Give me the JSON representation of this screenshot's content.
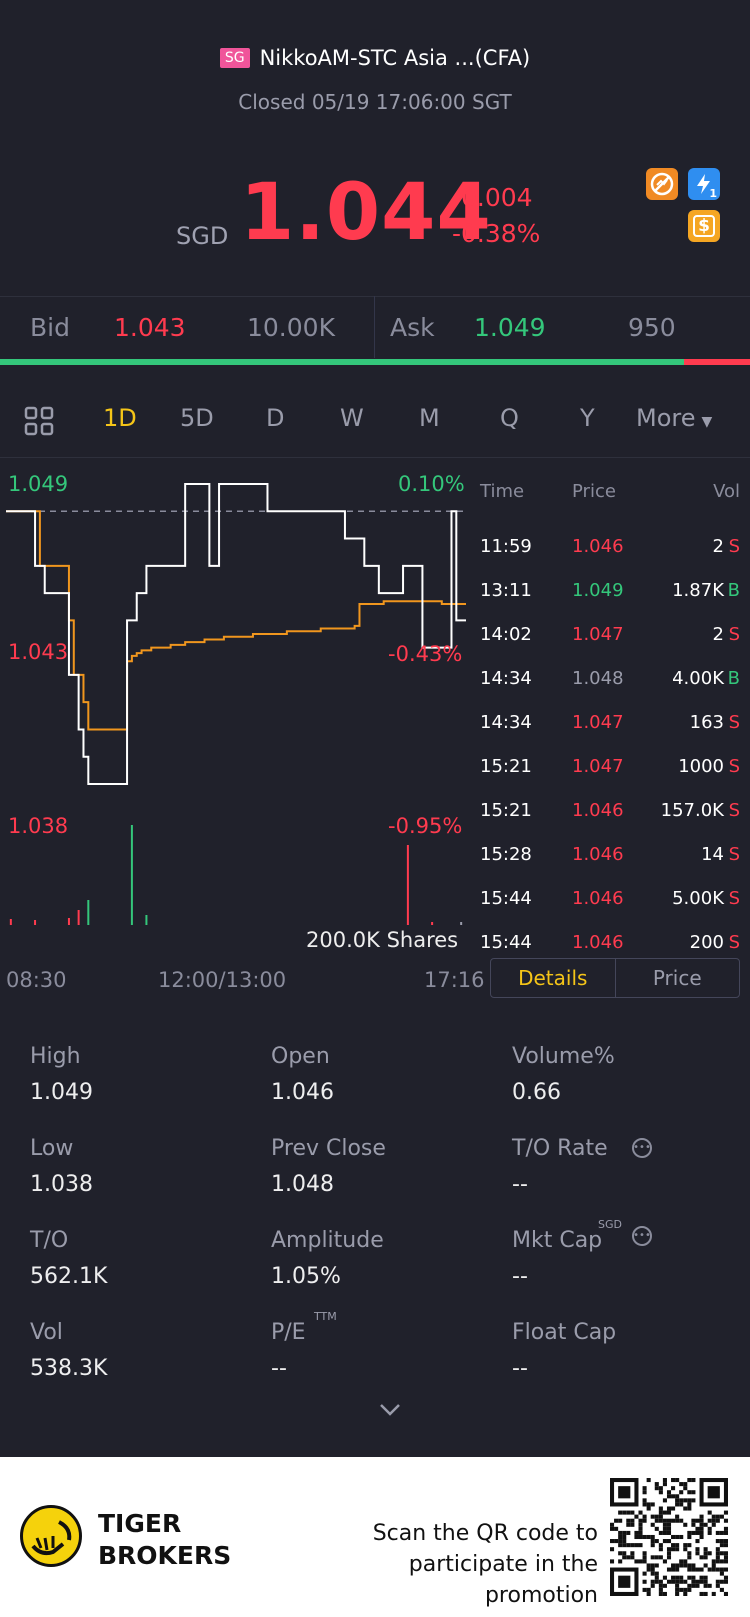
{
  "header": {
    "market_badge": "SG",
    "name": "NikkoAM-STC Asia ...(CFA)",
    "status": "Closed 05/19 17:06:00 SGT",
    "currency": "SGD",
    "price": "1.044",
    "change": "-0.004",
    "change_pct": "-0.38%",
    "icons": [
      "no-short-icon",
      "lightning-icon",
      "dollar-icon"
    ],
    "lightning_sub": "1",
    "dollar_glyph": "$"
  },
  "quote": {
    "bid_label": "Bid",
    "bid_price": "1.043",
    "bid_size": "10.00K",
    "ask_label": "Ask",
    "ask_price": "1.049",
    "ask_size": "950",
    "bid_ratio": 0.912
  },
  "tabs": [
    "1D",
    "5D",
    "D",
    "W",
    "M",
    "Q",
    "Y",
    "More"
  ],
  "active_tab": "1D",
  "chart_labels": {
    "y_high": "1.049",
    "y_mid": "1.043",
    "y_low": "1.038",
    "pct_high": "0.10%",
    "pct_mid": "-0.43%",
    "pct_low": "-0.95%",
    "volume_label": "200.0K Shares",
    "x_start": "08:30",
    "x_mid": "12:00/13:00",
    "x_end": "17:16"
  },
  "chart_data": {
    "type": "line",
    "ylim": [
      1.038,
      1.049
    ],
    "prev_close": 1.048,
    "x_ticks": [
      "08:30",
      "12:00/13:00",
      "17:16"
    ],
    "y_ticks": [
      "1.049",
      "1.043",
      "1.038"
    ],
    "right_ticks": [
      "0.10%",
      "-0.43%",
      "-0.95%"
    ],
    "series": [
      {
        "color": "#ffffff",
        "values": [
          1.048,
          1.048,
          1.048,
          1.048,
          1.048,
          1.048,
          1.046,
          1.046,
          1.045,
          1.045,
          1.045,
          1.045,
          1.045,
          1.042,
          1.042,
          1.04,
          1.039,
          1.038,
          1.038,
          1.038,
          1.038,
          1.038,
          1.038,
          1.038,
          1.038,
          1.044,
          1.044,
          1.045,
          1.045,
          1.046,
          1.046,
          1.046,
          1.046,
          1.046,
          1.046,
          1.046,
          1.046,
          1.049,
          1.049,
          1.049,
          1.049,
          1.049,
          1.046,
          1.046,
          1.049,
          1.049,
          1.049,
          1.049,
          1.049,
          1.049,
          1.049,
          1.049,
          1.049,
          1.049,
          1.048,
          1.048,
          1.048,
          1.048,
          1.048,
          1.048,
          1.048,
          1.048,
          1.048,
          1.048,
          1.048,
          1.048,
          1.048,
          1.048,
          1.048,
          1.048,
          1.047,
          1.047,
          1.047,
          1.047,
          1.046,
          1.046,
          1.046,
          1.045,
          1.045,
          1.045,
          1.045,
          1.045,
          1.046,
          1.046,
          1.046,
          1.046,
          1.043,
          1.043,
          1.043,
          1.043,
          1.043,
          1.043,
          1.048,
          1.044,
          1.044,
          1.044
        ]
      },
      {
        "color": "#f0961e",
        "values": [
          1.048,
          1.048,
          1.048,
          1.048,
          1.048,
          1.048,
          1.048,
          1.046,
          1.046,
          1.046,
          1.046,
          1.046,
          1.046,
          1.044,
          1.042,
          1.042,
          1.041,
          1.04,
          1.04,
          1.04,
          1.04,
          1.04,
          1.04,
          1.04,
          1.04,
          1.0425,
          1.0427,
          1.0428,
          1.0429,
          1.0429,
          1.043,
          1.043,
          1.043,
          1.043,
          1.0431,
          1.0431,
          1.0431,
          1.0432,
          1.0432,
          1.0432,
          1.0432,
          1.0433,
          1.0433,
          1.0433,
          1.0433,
          1.0434,
          1.0434,
          1.0434,
          1.0434,
          1.0434,
          1.0434,
          1.0435,
          1.0435,
          1.0435,
          1.0435,
          1.0435,
          1.0435,
          1.0435,
          1.0436,
          1.0436,
          1.0436,
          1.0436,
          1.0436,
          1.0436,
          1.0436,
          1.0437,
          1.0437,
          1.0437,
          1.0437,
          1.0437,
          1.0437,
          1.0437,
          1.0438,
          1.0446,
          1.0446,
          1.0446,
          1.0446,
          1.0446,
          1.0447,
          1.0447,
          1.0447,
          1.0447,
          1.0447,
          1.0447,
          1.0447,
          1.0447,
          1.0447,
          1.0447,
          1.0447,
          1.0447,
          1.0446,
          1.0446,
          1.0446,
          1.0446,
          1.0446,
          1.0446
        ]
      }
    ],
    "volume": [
      {
        "i": 1,
        "v": 12000,
        "c": "red"
      },
      {
        "i": 6,
        "v": 10000,
        "c": "red"
      },
      {
        "i": 13,
        "v": 14000,
        "c": "red"
      },
      {
        "i": 15,
        "v": 30000,
        "c": "red"
      },
      {
        "i": 17,
        "v": 50000,
        "c": "green"
      },
      {
        "i": 26,
        "v": 200000,
        "c": "green"
      },
      {
        "i": 29,
        "v": 20000,
        "c": "green"
      },
      {
        "i": 83,
        "v": 160000,
        "c": "red"
      },
      {
        "i": 88,
        "v": 6000,
        "c": "red"
      },
      {
        "i": 94,
        "v": 5000,
        "c": "gray"
      }
    ]
  },
  "trades": {
    "headers": {
      "time": "Time",
      "price": "Price",
      "vol": "Vol"
    },
    "rows": [
      {
        "time": "11:59",
        "price": "1.046",
        "price_color": "red",
        "vol": "2",
        "side": "S"
      },
      {
        "time": "13:11",
        "price": "1.049",
        "price_color": "green",
        "vol": "1.87K",
        "side": "B"
      },
      {
        "time": "14:02",
        "price": "1.047",
        "price_color": "red",
        "vol": "2",
        "side": "S"
      },
      {
        "time": "14:34",
        "price": "1.048",
        "price_color": "gray",
        "vol": "4.00K",
        "side": "B"
      },
      {
        "time": "14:34",
        "price": "1.047",
        "price_color": "red",
        "vol": "163",
        "side": "S"
      },
      {
        "time": "15:21",
        "price": "1.047",
        "price_color": "red",
        "vol": "1000",
        "side": "S"
      },
      {
        "time": "15:21",
        "price": "1.046",
        "price_color": "red",
        "vol": "157.0K",
        "side": "S"
      },
      {
        "time": "15:28",
        "price": "1.046",
        "price_color": "red",
        "vol": "14",
        "side": "S"
      },
      {
        "time": "15:44",
        "price": "1.046",
        "price_color": "red",
        "vol": "5.00K",
        "side": "S"
      },
      {
        "time": "15:44",
        "price": "1.046",
        "price_color": "red",
        "vol": "200",
        "side": "S"
      }
    ],
    "toggle_details": "Details",
    "toggle_price": "Price"
  },
  "stats": [
    {
      "label": "High",
      "value": "1.049"
    },
    {
      "label": "Open",
      "value": "1.046"
    },
    {
      "label": "Volume%",
      "value": "0.66"
    },
    {
      "label": "Low",
      "value": "1.038"
    },
    {
      "label": "Prev Close",
      "value": "1.048"
    },
    {
      "label": "T/O Rate",
      "value": "--"
    },
    {
      "label": "T/O",
      "value": "562.1K"
    },
    {
      "label": "Amplitude",
      "value": "1.05%"
    },
    {
      "label": "Mkt Cap",
      "value": "--"
    },
    {
      "label": "Vol",
      "value": "538.3K"
    },
    {
      "label": "P/E",
      "value": "--"
    },
    {
      "label": "Float Cap",
      "value": "--"
    }
  ],
  "stat_sups": {
    "mkt_cap": "SGD",
    "pe": "TTM"
  },
  "colors": {
    "bg": "#20212b",
    "red": "#ff3b4f",
    "green": "#34c77b",
    "accent": "#f5c518",
    "orange": "#f0961e"
  },
  "footer": {
    "brand_line1": "TIGER",
    "brand_line2": "BROKERS",
    "promo_line1": "Scan the QR code to",
    "promo_line2": "participate in the promotion"
  }
}
